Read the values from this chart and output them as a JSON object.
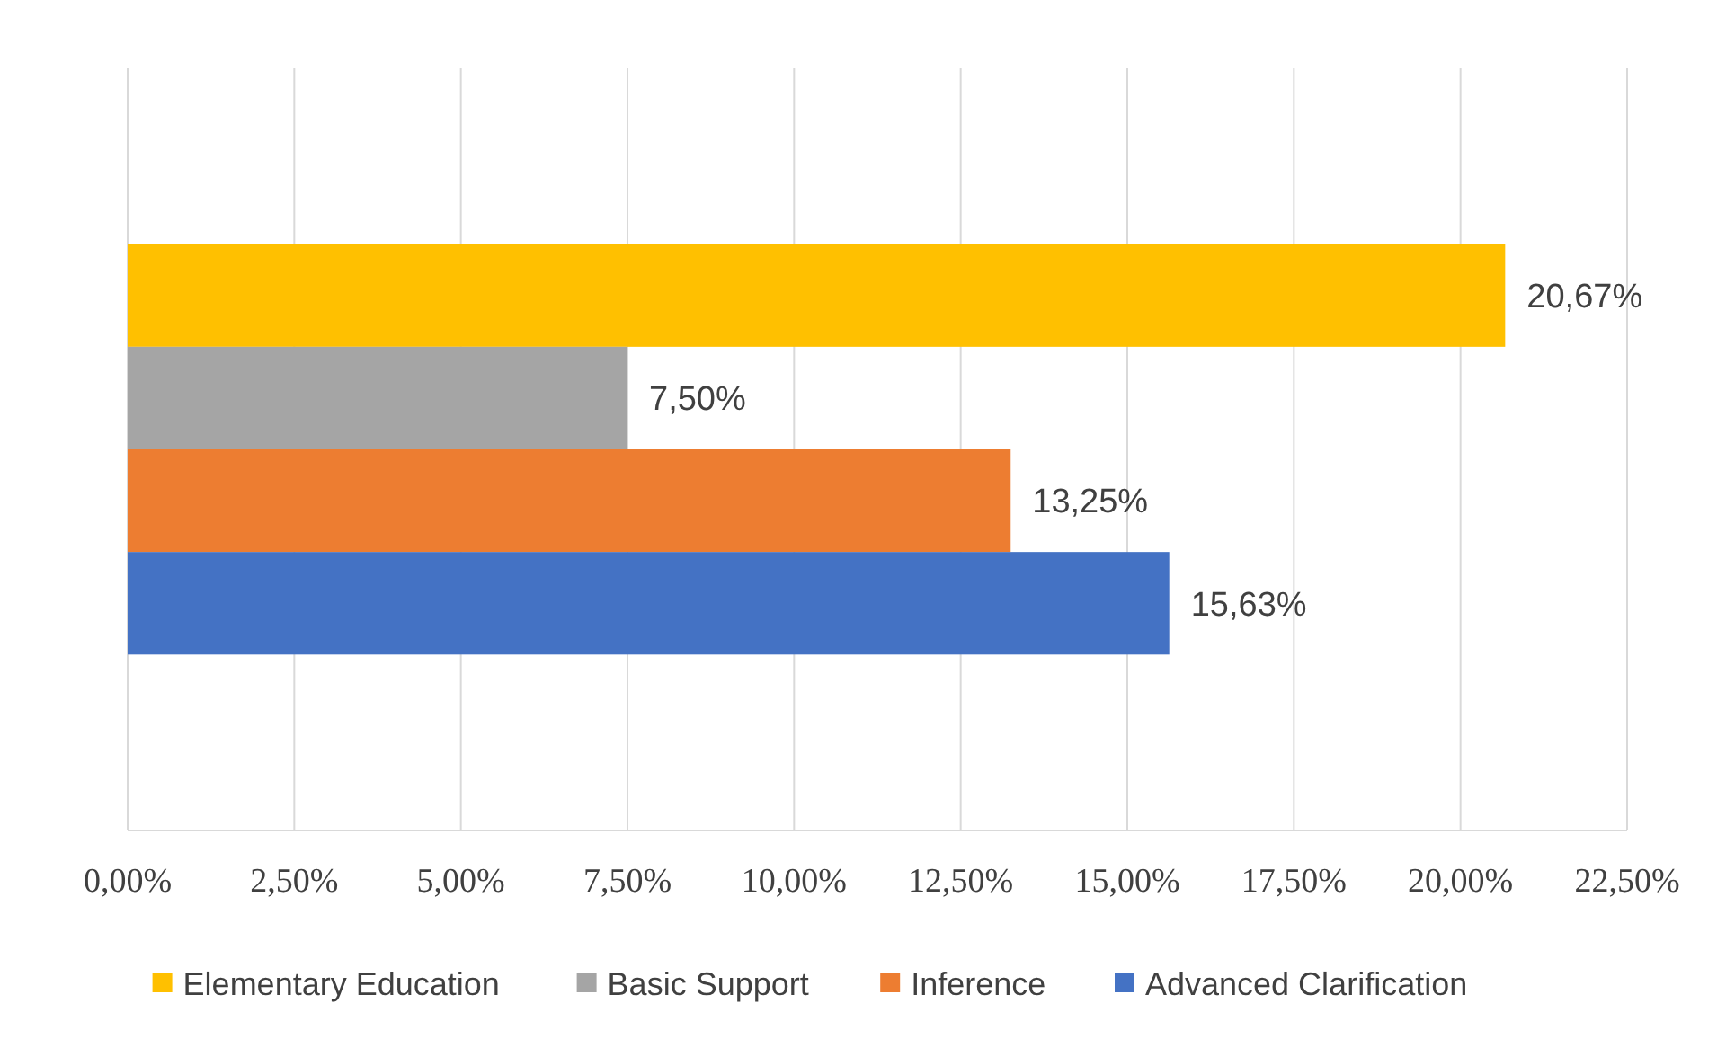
{
  "chart_data": {
    "type": "bar",
    "orientation": "horizontal",
    "categories": [
      null
    ],
    "series": [
      {
        "name": "Elementary Education",
        "color": "#ffc000",
        "values": [
          20.67
        ],
        "value_labels": [
          "20,67%"
        ]
      },
      {
        "name": "Basic Support",
        "color": "#a5a5a5",
        "values": [
          7.5
        ],
        "value_labels": [
          "7,50%"
        ]
      },
      {
        "name": "Inference",
        "color": "#ed7d31",
        "values": [
          13.25
        ],
        "value_labels": [
          "13,25%"
        ]
      },
      {
        "name": "Advanced Clarification",
        "color": "#4472c4",
        "values": [
          15.63
        ],
        "value_labels": [
          "15,63%"
        ]
      }
    ],
    "xlim": [
      0,
      22.5
    ],
    "xticks": [
      {
        "value": 0,
        "label": "0,00%"
      },
      {
        "value": 2.5,
        "label": "2,50%"
      },
      {
        "value": 5,
        "label": "5,00%"
      },
      {
        "value": 7.5,
        "label": "7,50%"
      },
      {
        "value": 10,
        "label": "10,00%"
      },
      {
        "value": 12.5,
        "label": "12,50%"
      },
      {
        "value": 15,
        "label": "15,00%"
      },
      {
        "value": 17.5,
        "label": "17,50%"
      },
      {
        "value": 20,
        "label": "20,00%"
      },
      {
        "value": 22.5,
        "label": "22,50%"
      }
    ],
    "grid": "x",
    "legend": "bottom"
  }
}
